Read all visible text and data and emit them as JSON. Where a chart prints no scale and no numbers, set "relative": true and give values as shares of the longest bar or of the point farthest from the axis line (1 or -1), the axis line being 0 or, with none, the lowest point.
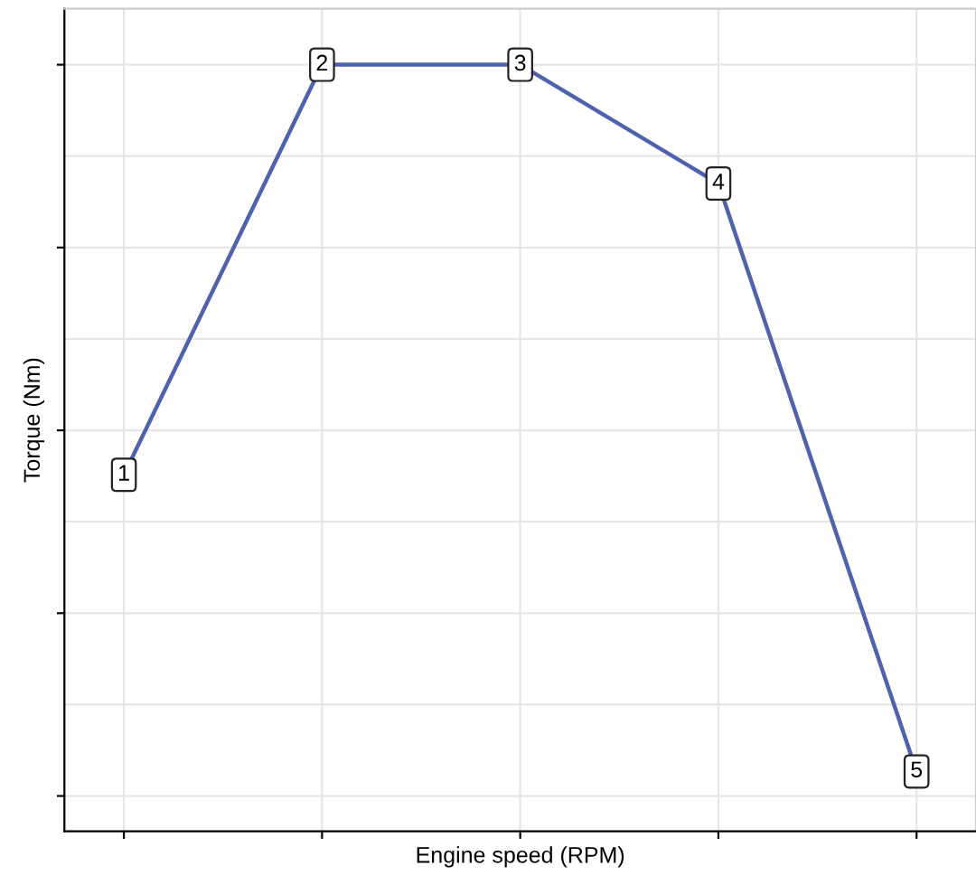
{
  "chart_data": {
    "type": "line",
    "xlabel": "Engine speed (RPM)",
    "ylabel": "Torque (Nm)",
    "relative": true,
    "categories": [
      null,
      null,
      null,
      null,
      null
    ],
    "series": [
      {
        "color": "#4f62ad",
        "values": [
          0.465,
          1,
          1,
          0.845,
          0.078
        ]
      }
    ],
    "annotations": [
      "1",
      "2",
      "3",
      "4",
      "5"
    ],
    "grid": true,
    "marker": "square",
    "line_style": "solid",
    "legend": false
  }
}
